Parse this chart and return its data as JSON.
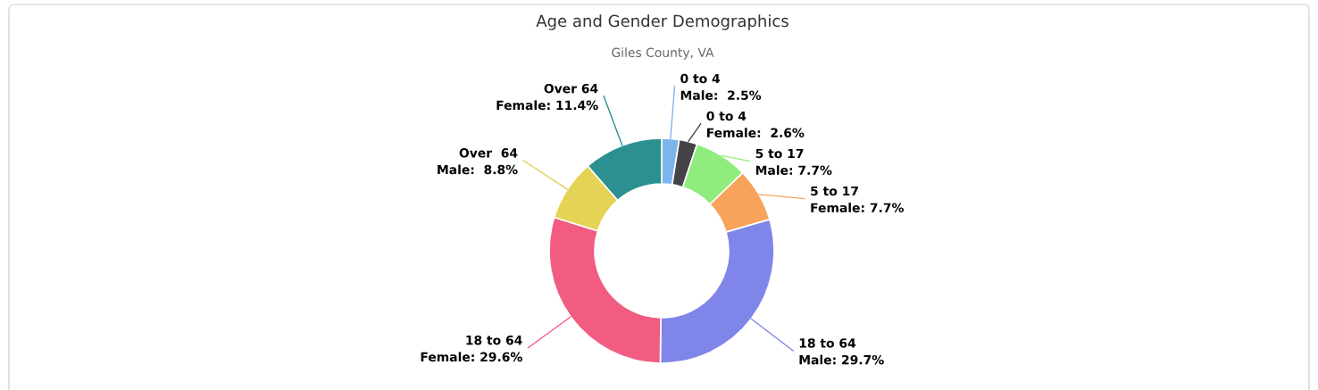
{
  "chart_data": {
    "type": "donut",
    "title": "Age and Gender Demographics",
    "subtitle": "Giles County, VA",
    "categories": [
      "0 to 4",
      "0 to 4",
      "5 to 17",
      "5 to 17",
      "18 to 64",
      "18 to 64",
      "Over  64",
      "Over 64"
    ],
    "values": [
      2.5,
      2.6,
      7.7,
      7.7,
      29.7,
      29.6,
      8.8,
      11.4
    ],
    "value_labels": [
      "Male:  2.5%",
      "Female:  2.6%",
      "Male: 7.7%",
      "Female: 7.7%",
      "Male: 29.7%",
      "Female: 29.6%",
      "Male:  8.8%",
      "Female: 11.4%"
    ],
    "colors": [
      "#7cb5ec",
      "#434348",
      "#90ed7d",
      "#f7a35c",
      "#8085e9",
      "#f15c80",
      "#e4d354",
      "#2b908f"
    ]
  }
}
